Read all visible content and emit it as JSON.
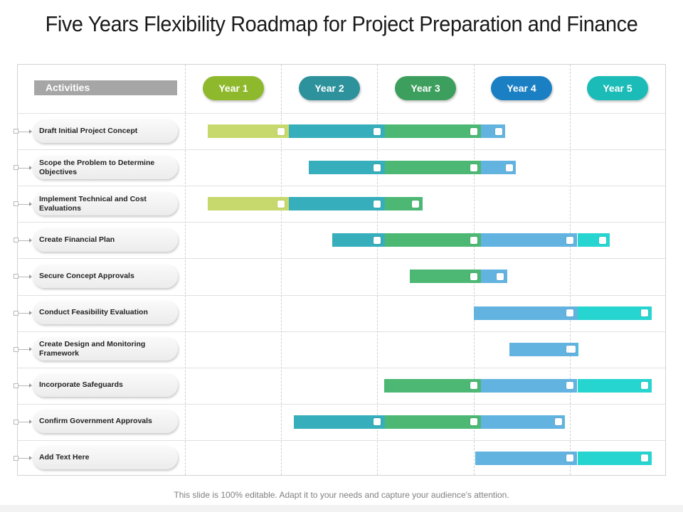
{
  "title": "Five Years Flexibility Roadmap for Project Preparation and Finance",
  "activities_header": "Activities",
  "footer": "This slide is 100% editable. Adapt it to your needs and capture your audience's attention.",
  "colors": {
    "lime": "#c7d86d",
    "teal": "#36aebb",
    "green": "#4cb874",
    "blue": "#62b3e0",
    "cyan": "#26d4d0"
  },
  "years": [
    {
      "label": "Year 1",
      "color": "#8fb92c"
    },
    {
      "label": "Year 2",
      "color": "#2d929c"
    },
    {
      "label": "Year 3",
      "color": "#3d9f5d"
    },
    {
      "label": "Year 4",
      "color": "#1b7fc4"
    },
    {
      "label": "Year 5",
      "color": "#1bbcb8"
    }
  ],
  "activities": [
    {
      "label": "Draft Initial Project Concept",
      "start": 0.24,
      "end": 3.33
    },
    {
      "label": "Scope the Problem to Determine Objectives",
      "start": 1.29,
      "end": 3.44
    },
    {
      "label": "Implement Technical and Cost Evaluations",
      "start": 0.24,
      "end": 2.47
    },
    {
      "label": "Create Financial Plan",
      "start": 1.53,
      "end": 4.41
    },
    {
      "label": "Secure Concept Approvals",
      "start": 2.34,
      "end": 3.35
    },
    {
      "label": "Conduct Feasibility Evaluation",
      "start": 3.0,
      "end": 4.85
    },
    {
      "label": "Create Design and Monitoring Framework",
      "start": 3.37,
      "end": 4.09
    },
    {
      "label": "Incorporate Safeguards",
      "start": 2.07,
      "end": 4.85
    },
    {
      "label": "Confirm Government Approvals",
      "start": 1.13,
      "end": 3.95
    },
    {
      "label": "Add Text Here",
      "start": 3.02,
      "end": 4.85
    }
  ]
}
